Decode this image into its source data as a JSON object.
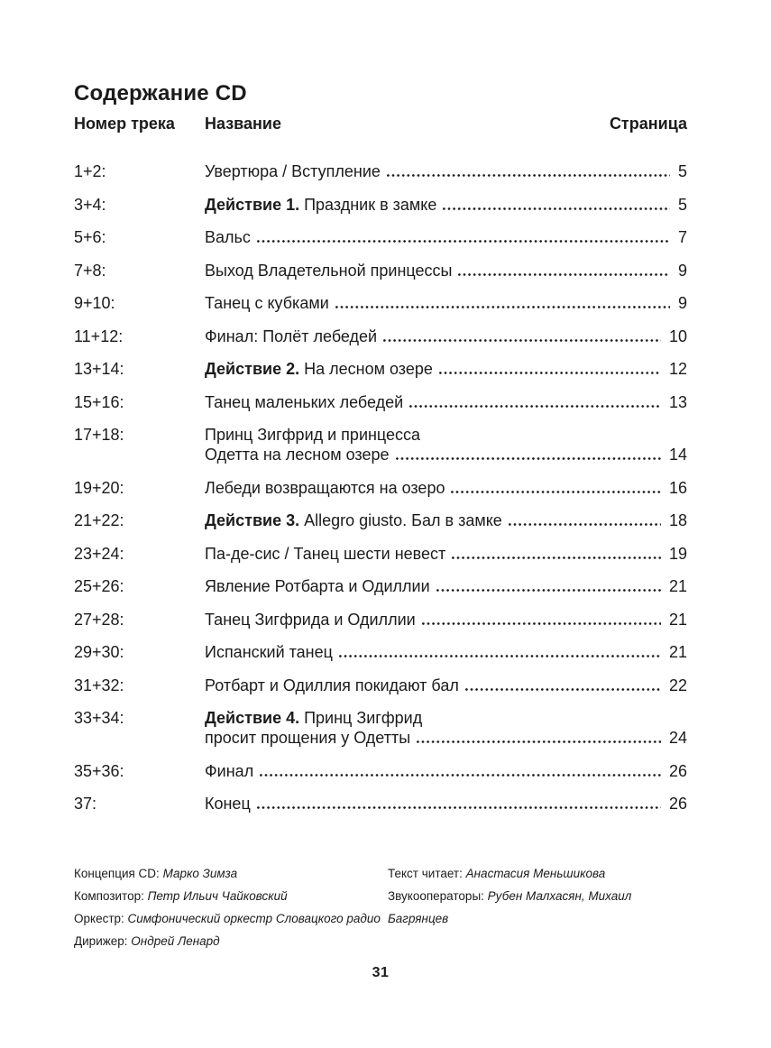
{
  "header": {
    "doc_title": "Содержание CD",
    "col_track": "Номер трека",
    "col_title": "Название",
    "col_page": "Страница"
  },
  "toc": [
    {
      "track": "1+2:",
      "title": "Увертюра / Вступление",
      "page": "5"
    },
    {
      "track": "3+4:",
      "bold": "Действие 1.",
      "title": " Праздник в замке",
      "page": "5"
    },
    {
      "track": "5+6:",
      "title": "Вальс",
      "page": "7"
    },
    {
      "track": "7+8:",
      "title": "Выход Владетельной принцессы",
      "page": "9"
    },
    {
      "track": "9+10:",
      "title": "Танец с кубками",
      "page": "9"
    },
    {
      "track": "11+12:",
      "title": "Финал: Полёт лебедей",
      "page": "10"
    },
    {
      "track": "13+14:",
      "bold": "Действие 2.",
      "title": " На лесном озере",
      "page": "12"
    },
    {
      "track": "15+16:",
      "title": "Танец маленьких лебедей",
      "page": "13"
    },
    {
      "track": "17+18:",
      "title": "Принц Зигфрид и принцесса",
      "line2": "Одетта на лесном озере",
      "page": "14"
    },
    {
      "track": "19+20:",
      "title": "Лебеди возвращаются на озеро",
      "page": "16"
    },
    {
      "track": "21+22:",
      "bold": "Действие 3.",
      "title": " Allegro giusto. Бал в замке",
      "page": "18"
    },
    {
      "track": "23+24:",
      "title": "Па-де-сис / Танец шести невест",
      "page": "19"
    },
    {
      "track": "25+26:",
      "title": "Явление Ротбарта и Одиллии",
      "page": "21"
    },
    {
      "track": "27+28:",
      "title": "Танец Зигфрида и Одиллии",
      "page": "21"
    },
    {
      "track": "29+30:",
      "title": "Испанский танец",
      "page": "21"
    },
    {
      "track": "31+32:",
      "title": "Ротбарт и Одиллия покидают бал",
      "page": "22"
    },
    {
      "track": "33+34:",
      "bold": "Действие 4.",
      "title": " Принц Зигфрид",
      "line2": "просит прощения у Одетты",
      "page": "24"
    },
    {
      "track": "35+36:",
      "title": "Финал",
      "page": "26"
    },
    {
      "track": "37:",
      "title": "Конец",
      "page": "26"
    }
  ],
  "credits": {
    "left": [
      {
        "label": "Концепция CD:",
        "value": "Марко Зимза"
      },
      {
        "label": "Композитор:",
        "value": "Петр Ильич Чайковский"
      },
      {
        "label": "Оркестр:",
        "value": "Симфонический оркестр Словацкого радио"
      },
      {
        "label": "Дирижер:",
        "value": "Ондрей Ленард"
      }
    ],
    "right": [
      {
        "label": "Текст читает:",
        "value": "Анастасия Меньшикова"
      },
      {
        "label": "Звукооператоры:",
        "value": "Рубен Малхасян, Михаил Багрянцев"
      }
    ]
  },
  "folio": "31"
}
